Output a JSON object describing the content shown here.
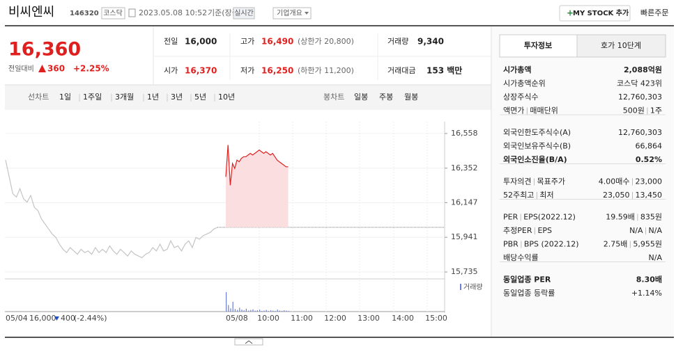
{
  "header": {
    "name": "비씨엔씨",
    "code": "146320",
    "market": "코스닥",
    "datetime": "2023.05.08 10:52",
    "basis": "기준(장중)",
    "live": "실시간",
    "overview": "기업개요",
    "mystock": "MY STOCK 추가",
    "quick_order": "빠른주문"
  },
  "price": {
    "current": "16,360",
    "change_label": "전일대비",
    "change": "360",
    "change_pct": "+2.25%"
  },
  "stats": [
    {
      "label": "전일",
      "value": "16,000"
    },
    {
      "label": "고가",
      "value": "16,490",
      "extra": "(상한가 20,800)",
      "color": "#e0201f"
    },
    {
      "label": "거래량",
      "value": "9,340"
    },
    {
      "label": "시가",
      "value": "16,370",
      "color": "#e0201f"
    },
    {
      "label": "저가",
      "value": "16,250",
      "extra": "(하한가 11,200)",
      "color": "#e0201f"
    },
    {
      "label": "거래대금",
      "value": "153 백만"
    }
  ],
  "chart_tabs": {
    "line_label": "선차트",
    "periods": [
      "1일",
      "1주일",
      "3개월",
      "1년",
      "3년",
      "5년",
      "10년"
    ],
    "selected": 0,
    "candle_label": "봉차트",
    "candles": [
      "일봉",
      "주봉",
      "월봉"
    ]
  },
  "chart_data": {
    "type": "line",
    "x_labels": [
      "05/04",
      "05/08",
      "10:00",
      "11:00",
      "12:00",
      "13:00",
      "14:00",
      "15:00"
    ],
    "ylim": [
      15698,
      16599
    ],
    "yticks": [
      {
        "value": 16558,
        "label": "16,558"
      },
      {
        "value": 16352,
        "label": "16,352"
      },
      {
        "value": 16147,
        "label": "16,147"
      },
      {
        "value": 15941,
        "label": "15,941"
      },
      {
        "value": 15735,
        "label": "15,735"
      }
    ],
    "reference": 16000,
    "series": [
      {
        "color": "#c4c4c4",
        "values": [
          16400,
          16300,
          16200,
          16180,
          16230,
          16170,
          16150,
          16190,
          16120,
          16100,
          16050,
          16020,
          15990,
          15960,
          15940,
          15900,
          15870,
          15850,
          15880,
          15860,
          15840,
          15870,
          15850,
          15860,
          15840,
          15880,
          15850,
          15870,
          15850,
          15890,
          15860,
          15840,
          15870,
          15850,
          15830,
          15860,
          15840,
          15830,
          15820,
          15840,
          15850,
          15880,
          15860,
          15900,
          15860,
          15870,
          15920,
          15880,
          15890,
          15860,
          15900,
          15920,
          15880,
          15940,
          15930,
          15950,
          15960,
          15970,
          15990,
          16000
        ]
      },
      {
        "color": "#e0201f",
        "fill": "#fbdfe0",
        "values": [
          16300,
          16490,
          16250,
          16380,
          16350,
          16400,
          16390,
          16410,
          16420,
          16420,
          16430,
          16440,
          16430,
          16440,
          16450,
          16460,
          16450,
          16440,
          16450,
          16440,
          16430,
          16440,
          16420,
          16400,
          16390,
          16380,
          16370,
          16360,
          16360
        ]
      }
    ],
    "volume": {
      "name": "거래량",
      "color": "#6b7fd6",
      "values": [
        60,
        20,
        10,
        30,
        8,
        5,
        12,
        6,
        4,
        9,
        3,
        5,
        7,
        3,
        4,
        6,
        2,
        3,
        5,
        2,
        4,
        3,
        2,
        6,
        3,
        2,
        4,
        3,
        2
      ]
    },
    "prev_summary": {
      "price": "16,000",
      "change": "400",
      "pct": "(-2.44%)"
    }
  },
  "side_panel": {
    "tabs": [
      "투자정보",
      "호가 10단계"
    ],
    "groups": [
      [
        {
          "label": [
            "시가총액"
          ],
          "value": [
            "2,088억원"
          ],
          "bold": true
        },
        {
          "label": [
            "시가총액순위"
          ],
          "value": [
            "코스닥 423위"
          ]
        },
        {
          "label": [
            "상장주식수"
          ],
          "value": [
            "12,760,303"
          ]
        },
        {
          "label": [
            "액면가",
            "매매단위"
          ],
          "value": [
            "500원",
            "1주"
          ]
        }
      ],
      [
        {
          "label": [
            "외국인한도주식수(A)"
          ],
          "value": [
            "12,760,303"
          ]
        },
        {
          "label": [
            "외국인보유주식수(B)"
          ],
          "value": [
            "66,864"
          ]
        },
        {
          "label": [
            "외국인소진율(B/A)"
          ],
          "value": [
            "0.52%"
          ],
          "bold": true
        }
      ],
      [
        {
          "label": [
            "투자의견",
            "목표주가"
          ],
          "value": [
            "4.00매수",
            "23,000"
          ],
          "red_first": true
        },
        {
          "label": [
            "52주최고",
            "최저"
          ],
          "value": [
            "23,050",
            "13,450"
          ]
        }
      ],
      [
        {
          "label": [
            "PER",
            "EPS(2022.12)"
          ],
          "value": [
            "19.59배",
            "835원"
          ]
        },
        {
          "label": [
            "추정PER",
            "EPS"
          ],
          "value": [
            "N/A",
            "N/A"
          ]
        },
        {
          "label": [
            "PBR",
            "BPS (2022.12)"
          ],
          "value": [
            "2.75배",
            "5,955원"
          ]
        },
        {
          "label": [
            "배당수익률"
          ],
          "value": [
            "N/A"
          ]
        }
      ],
      [
        {
          "label": [
            "동일업종 PER"
          ],
          "value": [
            "8.30배"
          ],
          "bold": true
        },
        {
          "label": [
            "동일업종 등락률"
          ],
          "value": [
            "+1.14%"
          ],
          "red_first": true
        }
      ]
    ]
  }
}
